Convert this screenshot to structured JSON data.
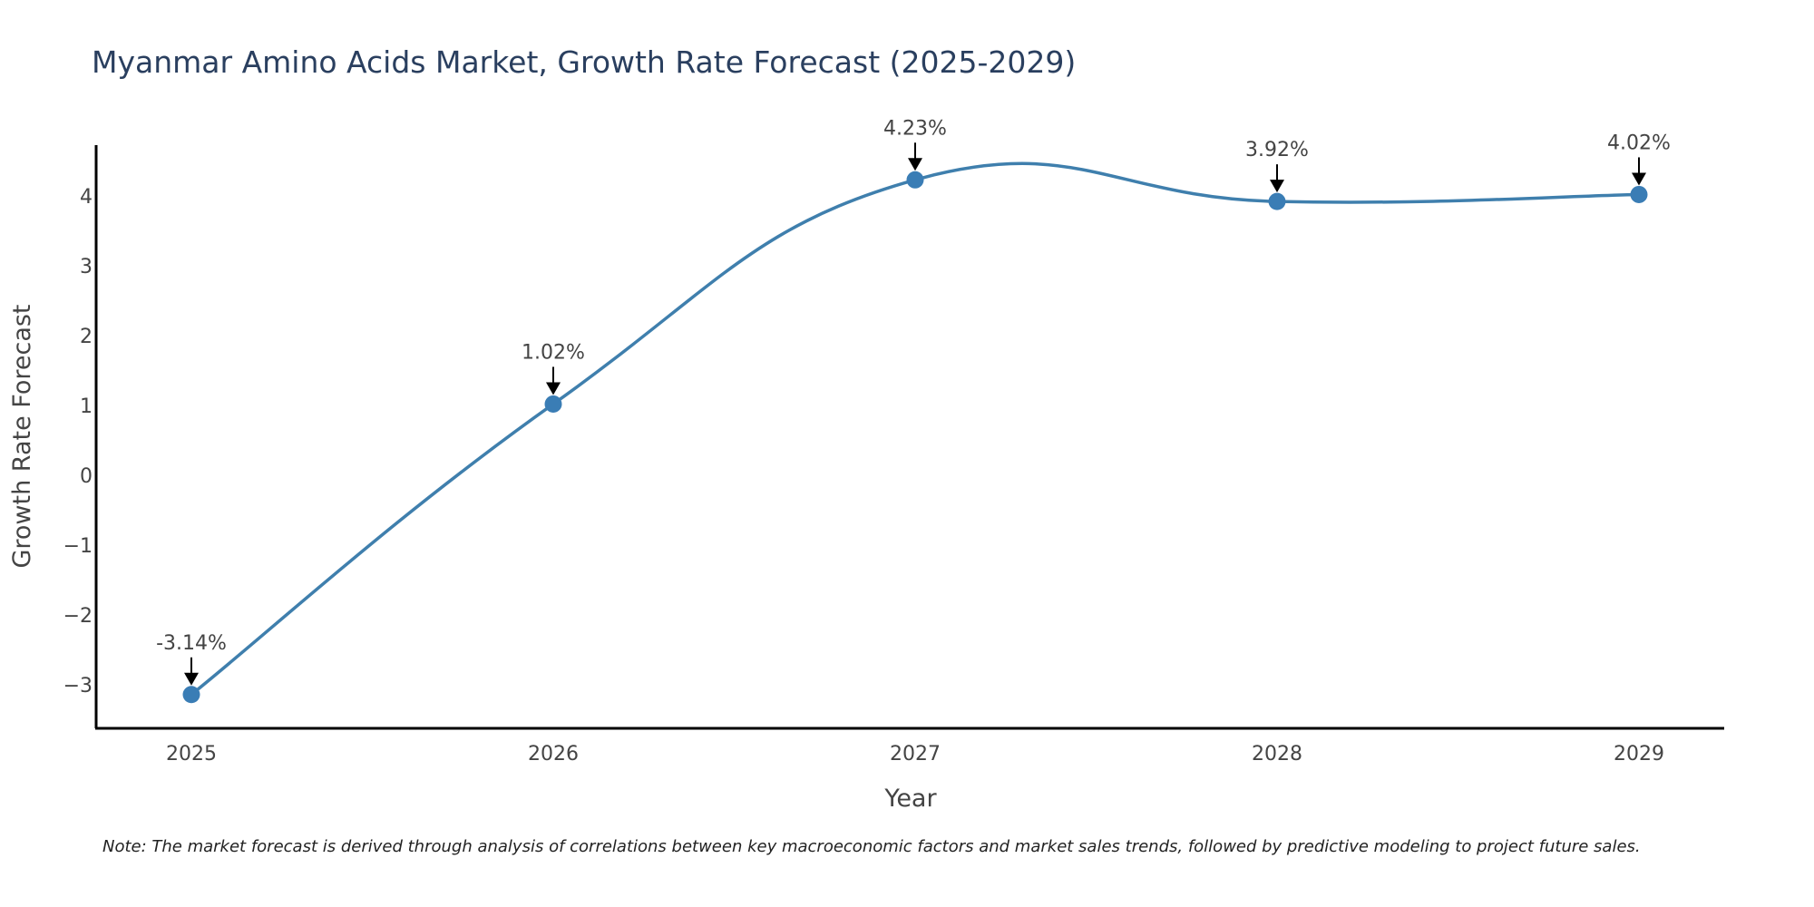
{
  "chart_data": {
    "type": "line",
    "title": "Myanmar Amino Acids Market, Growth Rate Forecast (2025-2029)",
    "xlabel": "Year",
    "ylabel": "Growth Rate Forecast",
    "categories": [
      "2025",
      "2026",
      "2027",
      "2028",
      "2029"
    ],
    "values": [
      -3.14,
      1.02,
      4.23,
      3.92,
      4.02
    ],
    "labels": [
      "-3.14%",
      "1.02%",
      "4.23%",
      "3.92%",
      "4.02%"
    ],
    "yticks": [
      -3,
      -2,
      -1,
      0,
      1,
      2,
      3,
      4
    ],
    "ytick_labels": [
      "−3",
      "−2",
      "−1",
      "0",
      "1",
      "2",
      "3",
      "4"
    ],
    "ylim": [
      -3.66,
      4.72
    ],
    "grid": false,
    "line_color": "#3f7fad",
    "marker_color": "#3a7db5",
    "note": "Note: The market forecast is derived through analysis of correlations between key macroeconomic factors and market sales trends, followed by predictive modeling to project future sales."
  }
}
